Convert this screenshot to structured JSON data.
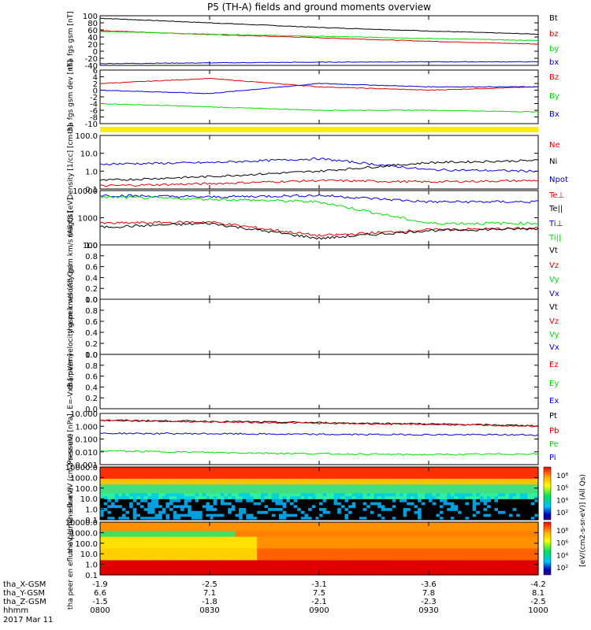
{
  "title": "P5 (TH-A) fields and ground moments overview",
  "date": "2017 Mar 11",
  "colors": {
    "black": "#000000",
    "red": "#e00000",
    "green": "#00dd00",
    "blue": "#0000dd",
    "yellow": "#ffee00"
  },
  "colorbar_label": "[eV/(cm2-s-sr-eV)] (All Qs)",
  "colorbar_ticks": [
    "10⁸",
    "10⁶",
    "10⁴",
    "10²"
  ],
  "footer": {
    "rows": [
      {
        "label": "tha_X-GSM",
        "values": [
          "-1.9",
          "-2.5",
          "-3.1",
          "-3.6",
          "-4.2"
        ]
      },
      {
        "label": "tha_Y-GSM",
        "values": [
          "6.6",
          "7.1",
          "7.5",
          "7.8",
          "8.1"
        ]
      },
      {
        "label": "tha_Z-GSM",
        "values": [
          "-1.5",
          "-1.8",
          "-2.1",
          "-2.3",
          "-2.5"
        ]
      },
      {
        "label": "hhmm",
        "values": [
          "0800",
          "0830",
          "0900",
          "0930",
          "1000"
        ]
      }
    ]
  },
  "chart_data": [
    {
      "type": "line",
      "ylabel": "tha fgs gsm [nT]",
      "ylim": [
        -40,
        100
      ],
      "yticks": [
        "100",
        "80",
        "60",
        "40",
        "20",
        "0",
        "-20",
        "-40"
      ],
      "x": [
        "0800",
        "0830",
        "0900",
        "0930",
        "1000"
      ],
      "series": [
        {
          "name": "Bt",
          "color": "#000000",
          "values": [
            93,
            80,
            67,
            57,
            48
          ]
        },
        {
          "name": "bz",
          "color": "#e00000",
          "values": [
            58,
            47,
            38,
            28,
            20
          ]
        },
        {
          "name": "by",
          "color": "#00dd00",
          "values": [
            56,
            48,
            42,
            36,
            30
          ]
        },
        {
          "name": "bx",
          "color": "#0000dd",
          "values": [
            -35,
            -33,
            -31,
            -30,
            -30
          ]
        }
      ]
    },
    {
      "type": "line",
      "ylabel": "tha fgs gsm dev [nT]",
      "ylim": [
        -10,
        6
      ],
      "yticks": [
        "6",
        "4",
        "2",
        "0",
        "-2",
        "-4",
        "-6",
        "-8",
        "-10"
      ],
      "x": [
        "0800",
        "0830",
        "0900",
        "0930",
        "1000"
      ],
      "series": [
        {
          "name": "Bz",
          "color": "#e00000",
          "values": [
            2,
            3.5,
            1,
            0,
            1
          ]
        },
        {
          "name": "By",
          "color": "#00dd00",
          "values": [
            -4,
            -5,
            -6,
            -6,
            -6.5
          ]
        },
        {
          "name": "Bx",
          "color": "#0000dd",
          "values": [
            0,
            -1,
            2,
            1,
            1
          ]
        }
      ]
    },
    {
      "type": "line",
      "ylabel": "Density [1/cc] [cm-3]",
      "yscale": "log",
      "ylim": [
        0.1,
        100
      ],
      "yticks": [
        "100.0",
        "10.0",
        "1.0",
        "0.1"
      ],
      "x": [
        "0800",
        "0830",
        "0900",
        "0930",
        "1000"
      ],
      "series": [
        {
          "name": "Ne",
          "color": "#e00000",
          "values": [
            0.15,
            0.2,
            0.3,
            0.25,
            0.3
          ]
        },
        {
          "name": "Ni",
          "color": "#000000",
          "values": [
            0.3,
            0.5,
            1,
            3,
            4
          ]
        },
        {
          "name": "Npot",
          "color": "#0000dd",
          "values": [
            2.5,
            3,
            5,
            1.2,
            1
          ]
        }
      ]
    },
    {
      "type": "line",
      "ylabel": "magt3 [eV]",
      "yscale": "log",
      "ylim": [
        30,
        10000
      ],
      "yticks": [
        "10000",
        "1000",
        "100"
      ],
      "x": [
        "0800",
        "0830",
        "0900",
        "0930",
        "1000"
      ],
      "series": [
        {
          "name": "Te⊥",
          "color": "#e00000",
          "values": [
            300,
            350,
            80,
            150,
            180
          ]
        },
        {
          "name": "Te||",
          "color": "#000000",
          "values": [
            200,
            300,
            60,
            140,
            170
          ]
        },
        {
          "name": "Ti⊥",
          "color": "#0000dd",
          "values": [
            6000,
            5000,
            6000,
            3000,
            3000
          ]
        },
        {
          "name": "Ti||",
          "color": "#00dd00",
          "values": [
            5000,
            4000,
            3000,
            300,
            300
          ]
        }
      ]
    },
    {
      "type": "line",
      "ylabel": "tha peir velocity gsm km/s (All Qs)",
      "ylim": [
        0,
        1
      ],
      "yticks": [
        "1.0",
        "0.8",
        "0.6",
        "0.4",
        "0.2",
        "0.0"
      ],
      "series": [
        {
          "name": "Vt",
          "color": "#000000",
          "values": []
        },
        {
          "name": "Vz",
          "color": "#e00000",
          "values": []
        },
        {
          "name": "Vy",
          "color": "#00dd00",
          "values": []
        },
        {
          "name": "Vx",
          "color": "#0000dd",
          "values": []
        }
      ]
    },
    {
      "type": "line",
      "ylabel": "tha peer velocity gsm km/s (All Qs)",
      "ylim": [
        0,
        1
      ],
      "yticks": [
        "1.0",
        "0.8",
        "0.6",
        "0.4",
        "0.2",
        "0.0"
      ],
      "series": [
        {
          "name": "Vt",
          "color": "#000000",
          "values": []
        },
        {
          "name": "Vz",
          "color": "#e00000",
          "values": []
        },
        {
          "name": "Vy",
          "color": "#00dd00",
          "values": []
        },
        {
          "name": "Vx",
          "color": "#0000dd",
          "values": []
        }
      ]
    },
    {
      "type": "line",
      "ylabel": "E=-VxB [mV/m]",
      "ylim": [
        0,
        1
      ],
      "yticks": [
        "1.0",
        "0.8",
        "0.6",
        "0.4",
        "0.2",
        "0.0"
      ],
      "series": [
        {
          "name": "Ez",
          "color": "#e00000",
          "values": []
        },
        {
          "name": "Ey",
          "color": "#00dd00",
          "values": []
        },
        {
          "name": "Ex",
          "color": "#0000dd",
          "values": []
        }
      ]
    },
    {
      "type": "line",
      "ylabel": "Pressure [nPa]",
      "yscale": "log",
      "ylim": [
        0.001,
        10
      ],
      "yticks": [
        "10.000",
        "1.000",
        "0.100",
        "0.010",
        "0.001"
      ],
      "x": [
        "0800",
        "0830",
        "0900",
        "0930",
        "1000"
      ],
      "series": [
        {
          "name": "Pt",
          "color": "#000000",
          "values": [
            3.0,
            2.4,
            1.9,
            1.5,
            1.1
          ]
        },
        {
          "name": "Pb",
          "color": "#e00000",
          "values": [
            2.8,
            2.2,
            1.7,
            1.4,
            1.0
          ]
        },
        {
          "name": "Pe",
          "color": "#00dd00",
          "values": [
            0.012,
            0.009,
            0.007,
            0.006,
            0.007
          ]
        },
        {
          "name": "Pi",
          "color": "#0000dd",
          "values": [
            0.28,
            0.26,
            0.23,
            0.22,
            0.21
          ]
        }
      ]
    },
    {
      "type": "heatmap",
      "ylabel": "tha peir en eflux eV (cm2-s-sr-eV)",
      "yscale": "log",
      "ylim": [
        0.1,
        10000
      ],
      "yticks": [
        "10000.0",
        "1000.0",
        "100.0",
        "10.0",
        "1.0",
        "0.1"
      ]
    },
    {
      "type": "heatmap",
      "ylabel": "tha peer en eflux eV (cm2-s-sr-eV)",
      "yscale": "log",
      "ylim": [
        0.1,
        10000
      ],
      "yticks": [
        "10000.0",
        "1000.0",
        "100.0",
        "10.0",
        "1.0",
        "0.1"
      ]
    }
  ]
}
